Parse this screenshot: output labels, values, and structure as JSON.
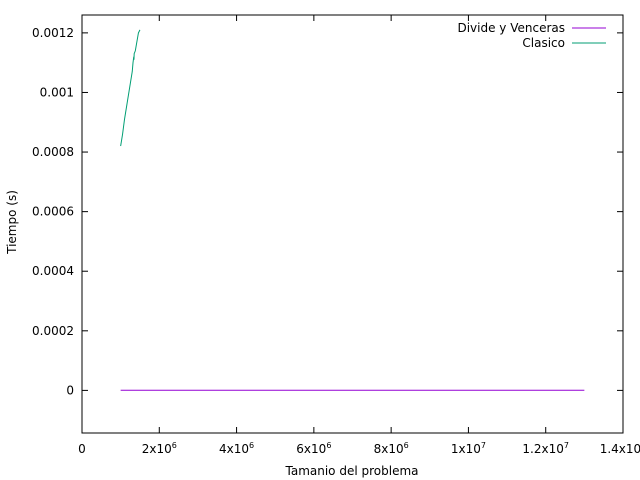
{
  "chart_data": {
    "type": "line",
    "title": "",
    "xlabel": "Tamanio del problema",
    "ylabel": "Tiempo (s)",
    "xlim": [
      0,
      14000000
    ],
    "ylim": [
      -0.000143,
      0.00126
    ],
    "x_ticks": [
      {
        "value": 0,
        "base": "0",
        "exp": ""
      },
      {
        "value": 2000000,
        "base": "2x10",
        "exp": "6"
      },
      {
        "value": 4000000,
        "base": "4x10",
        "exp": "6"
      },
      {
        "value": 6000000,
        "base": "6x10",
        "exp": "6"
      },
      {
        "value": 8000000,
        "base": "8x10",
        "exp": "6"
      },
      {
        "value": 10000000,
        "base": "1x10",
        "exp": "7"
      },
      {
        "value": 12000000,
        "base": "1.2x10",
        "exp": "7"
      },
      {
        "value": 14000000,
        "base": "1.4x10",
        "exp": "7"
      }
    ],
    "y_ticks": [
      {
        "value": 0,
        "label": "0"
      },
      {
        "value": 0.0002,
        "label": "0.0002"
      },
      {
        "value": 0.0004,
        "label": "0.0004"
      },
      {
        "value": 0.0006,
        "label": "0.0006"
      },
      {
        "value": 0.0008,
        "label": "0.0008"
      },
      {
        "value": 0.001,
        "label": "0.001"
      },
      {
        "value": 0.0012,
        "label": "0.0012"
      }
    ],
    "legend_position": "top-right",
    "series": [
      {
        "name": "Divide y Venceras",
        "color": "#9400d3",
        "x": [
          1000000,
          13000000
        ],
        "y": [
          5e-07,
          5e-07
        ]
      },
      {
        "name": "Clasico",
        "color": "#009e73",
        "x": [
          1000000,
          1050000,
          1100000,
          1150000,
          1200000,
          1250000,
          1300000,
          1320000,
          1340000,
          1345000,
          1350000,
          1380000,
          1420000,
          1460000,
          1500000
        ],
        "y": [
          0.00082,
          0.00086,
          0.00091,
          0.00095,
          0.00099,
          0.00103,
          0.00107,
          0.0011,
          0.00112,
          0.00111,
          0.00113,
          0.00114,
          0.00117,
          0.0012,
          0.00121
        ]
      }
    ]
  }
}
